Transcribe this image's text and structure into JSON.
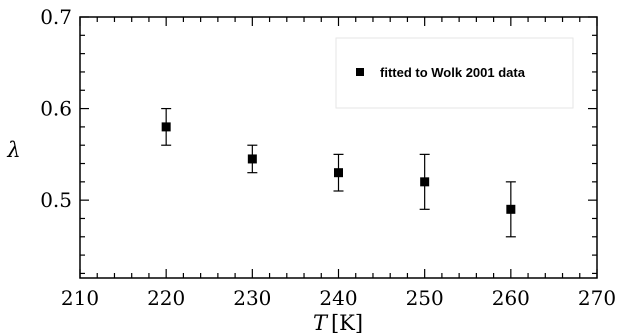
{
  "chart_data": {
    "type": "scatter",
    "title": "",
    "xlabel_italic": "T",
    "xlabel_unit": "[K]",
    "ylabel": "λ",
    "xlim": [
      210,
      270
    ],
    "ylim": [
      0.415,
      0.7
    ],
    "x_ticks": [
      210,
      220,
      230,
      240,
      250,
      260,
      270
    ],
    "x_tick_labels": [
      "210",
      "220",
      "230",
      "240",
      "250",
      "260",
      "270"
    ],
    "x_minor_step": 2,
    "y_ticks": [
      0.5,
      0.6,
      0.7
    ],
    "y_tick_labels": [
      "0.5",
      "0.6",
      "0.7"
    ],
    "y_minor_step": 0.02,
    "grid": false,
    "legend_position": "top-right",
    "series": [
      {
        "name": "fitted to Wolk 2001 data",
        "marker": "square",
        "color": "#000000",
        "points": [
          {
            "x": 220,
            "y": 0.58,
            "err_low": 0.56,
            "err_high": 0.6
          },
          {
            "x": 230,
            "y": 0.545,
            "err_low": 0.53,
            "err_high": 0.56
          },
          {
            "x": 240,
            "y": 0.53,
            "err_low": 0.51,
            "err_high": 0.55
          },
          {
            "x": 250,
            "y": 0.52,
            "err_low": 0.49,
            "err_high": 0.55
          },
          {
            "x": 260,
            "y": 0.49,
            "err_low": 0.46,
            "err_high": 0.52
          }
        ]
      }
    ]
  }
}
